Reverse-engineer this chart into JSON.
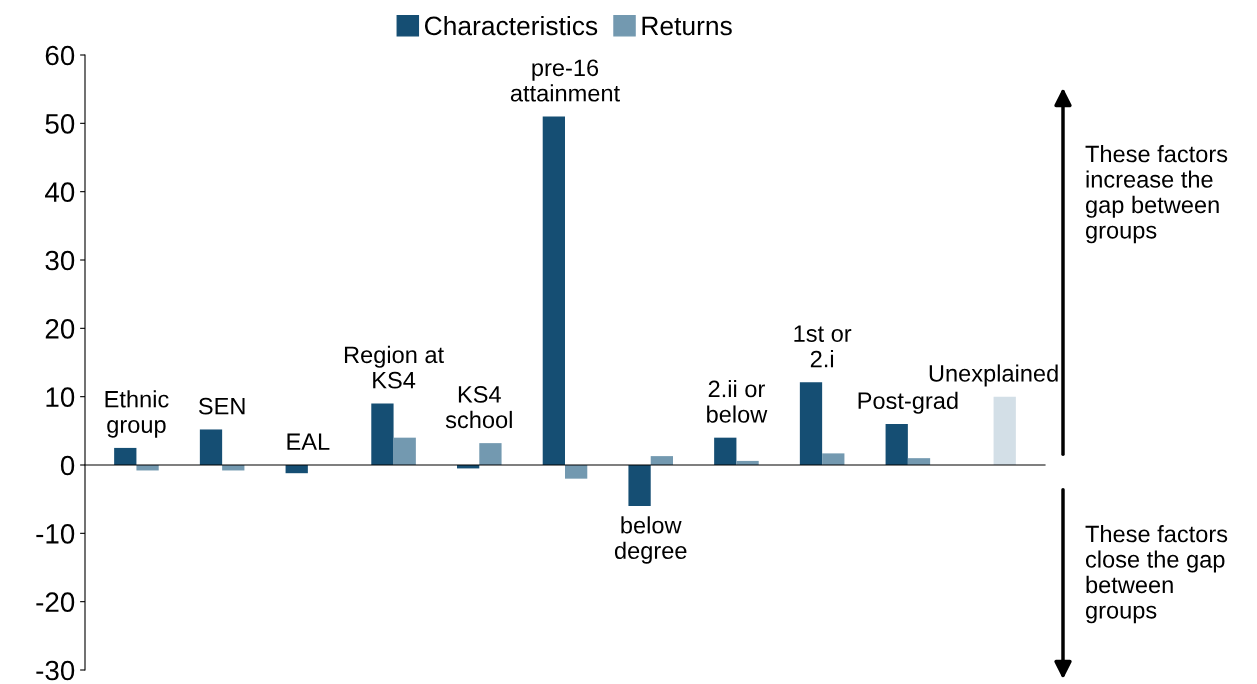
{
  "chart_data": {
    "type": "bar",
    "categories": [
      "Ethnic\ngroup",
      "SEN",
      "EAL",
      "Region at\nKS4",
      "KS4\nschool",
      "pre-16\nattainment",
      "below\ndegree",
      "2.ii or\nbelow",
      "1st or\n2.i",
      "Post-grad",
      "Unexplained"
    ],
    "series": [
      {
        "name": "Characteristics",
        "color": "#154e73",
        "values": [
          2.5,
          5.2,
          -1.2,
          9,
          -0.5,
          51,
          -6,
          4,
          12.1,
          6,
          null
        ]
      },
      {
        "name": "Returns",
        "color": "#7399b0",
        "colors": [
          "#7399b0",
          "#7399b0",
          "#7399b0",
          "#7399b0",
          "#7399b0",
          "#7399b0",
          "#7399b0",
          "#7399b0",
          "#7399b0",
          "#7399b0",
          "#d3dfe7"
        ],
        "values": [
          -0.8,
          -0.8,
          0,
          4,
          3.2,
          -2,
          1.3,
          0.6,
          1.7,
          1,
          10
        ]
      }
    ],
    "ylim": [
      -30,
      60
    ],
    "yticks": [
      -30,
      -20,
      -10,
      0,
      10,
      20,
      30,
      40,
      50,
      60
    ],
    "grid": false,
    "legend": "top",
    "tick_labels": "y",
    "annotations": [
      "These factors\nincrease the\ngap between\ngroups",
      "These factors\nclose the gap\nbetween\ngroups"
    ]
  }
}
